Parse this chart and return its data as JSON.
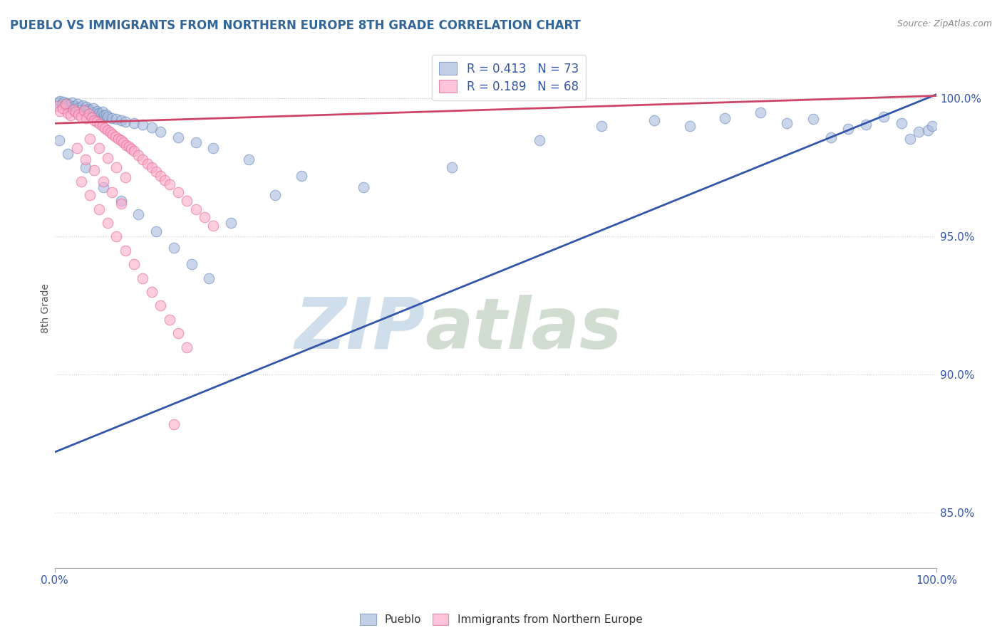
{
  "title": "PUEBLO VS IMMIGRANTS FROM NORTHERN EUROPE 8TH GRADE CORRELATION CHART",
  "source": "Source: ZipAtlas.com",
  "ylabel": "8th Grade",
  "xlim": [
    0.0,
    100.0
  ],
  "ylim": [
    83.0,
    101.8
  ],
  "yticks": [
    85.0,
    90.0,
    95.0,
    100.0
  ],
  "ytick_labels": [
    "85.0%",
    "90.0%",
    "95.0%",
    "100.0%"
  ],
  "xticks": [
    0.0,
    100.0
  ],
  "xtick_labels": [
    "0.0%",
    "100.0%"
  ],
  "blue_R": 0.413,
  "blue_N": 73,
  "pink_R": 0.189,
  "pink_N": 68,
  "blue_color": "#AABBDD",
  "pink_color": "#FFAACC",
  "blue_edge_color": "#6688BB",
  "pink_edge_color": "#DD6688",
  "blue_line_color": "#3355AA",
  "pink_line_color": "#CC4466",
  "blue_line_start_y": 87.2,
  "blue_line_end_y": 100.15,
  "pink_line_start_y": 99.1,
  "pink_line_end_y": 100.1,
  "watermark_zip": "ZIP",
  "watermark_atlas": "atlas",
  "watermark_color_zip": "#C8D8E8",
  "watermark_color_atlas": "#C8D8C8",
  "background_color": "#FFFFFF",
  "grid_color": "#CCCCCC",
  "title_color": "#336699",
  "legend_label_color": "#3355AA",
  "blue_scatter_x": [
    0.4,
    0.6,
    0.8,
    1.0,
    1.2,
    1.4,
    1.6,
    1.8,
    2.0,
    2.2,
    2.4,
    2.6,
    2.8,
    3.0,
    3.2,
    3.4,
    3.6,
    3.8,
    4.0,
    4.2,
    4.4,
    4.6,
    4.8,
    5.0,
    5.2,
    5.4,
    5.6,
    5.8,
    6.0,
    6.5,
    7.0,
    7.5,
    8.0,
    9.0,
    10.0,
    11.0,
    12.0,
    14.0,
    16.0,
    18.0,
    22.0,
    28.0,
    35.0,
    45.0,
    55.0,
    62.0,
    68.0,
    72.0,
    76.0,
    80.0,
    83.0,
    86.0,
    88.0,
    90.0,
    92.0,
    94.0,
    96.0,
    97.0,
    98.0,
    99.0,
    99.5,
    0.5,
    1.5,
    3.5,
    5.5,
    7.5,
    9.5,
    11.5,
    13.5,
    15.5,
    17.5,
    20.0,
    25.0
  ],
  "blue_scatter_y": [
    99.85,
    99.9,
    99.8,
    99.88,
    99.75,
    99.82,
    99.78,
    99.7,
    99.85,
    99.72,
    99.65,
    99.8,
    99.68,
    99.6,
    99.75,
    99.55,
    99.7,
    99.62,
    99.58,
    99.5,
    99.65,
    99.45,
    99.55,
    99.48,
    99.4,
    99.52,
    99.38,
    99.42,
    99.35,
    99.3,
    99.25,
    99.2,
    99.15,
    99.1,
    99.05,
    98.95,
    98.8,
    98.6,
    98.4,
    98.2,
    97.8,
    97.2,
    96.8,
    97.5,
    98.5,
    99.0,
    99.2,
    99.0,
    99.3,
    99.5,
    99.1,
    99.25,
    98.6,
    98.9,
    99.05,
    99.35,
    99.1,
    98.55,
    98.8,
    98.85,
    99.0,
    98.5,
    98.0,
    97.5,
    96.8,
    96.3,
    95.8,
    95.2,
    94.6,
    94.0,
    93.5,
    95.5,
    96.5
  ],
  "pink_scatter_x": [
    0.3,
    0.6,
    0.9,
    1.2,
    1.5,
    1.8,
    2.1,
    2.4,
    2.7,
    3.0,
    3.3,
    3.6,
    3.9,
    4.2,
    4.5,
    4.8,
    5.1,
    5.4,
    5.7,
    6.0,
    6.3,
    6.6,
    6.9,
    7.2,
    7.5,
    7.8,
    8.1,
    8.4,
    8.7,
    9.0,
    9.5,
    10.0,
    10.5,
    11.0,
    11.5,
    12.0,
    12.5,
    13.0,
    14.0,
    15.0,
    16.0,
    17.0,
    18.0,
    2.5,
    3.5,
    4.5,
    5.5,
    6.5,
    7.5,
    4.0,
    5.0,
    6.0,
    7.0,
    8.0,
    3.0,
    4.0,
    5.0,
    6.0,
    7.0,
    8.0,
    9.0,
    10.0,
    11.0,
    12.0,
    13.0,
    14.0,
    15.0,
    13.5
  ],
  "pink_scatter_y": [
    99.72,
    99.55,
    99.65,
    99.8,
    99.48,
    99.38,
    99.6,
    99.52,
    99.42,
    99.35,
    99.58,
    99.28,
    99.45,
    99.32,
    99.22,
    99.15,
    99.08,
    99.0,
    98.92,
    98.85,
    98.78,
    98.7,
    98.62,
    98.55,
    98.48,
    98.4,
    98.32,
    98.25,
    98.18,
    98.1,
    97.95,
    97.8,
    97.65,
    97.5,
    97.35,
    97.2,
    97.05,
    96.9,
    96.6,
    96.3,
    96.0,
    95.7,
    95.4,
    98.2,
    97.8,
    97.4,
    97.0,
    96.6,
    96.2,
    98.55,
    98.2,
    97.85,
    97.5,
    97.15,
    97.0,
    96.5,
    96.0,
    95.5,
    95.0,
    94.5,
    94.0,
    93.5,
    93.0,
    92.5,
    92.0,
    91.5,
    91.0,
    88.2
  ]
}
